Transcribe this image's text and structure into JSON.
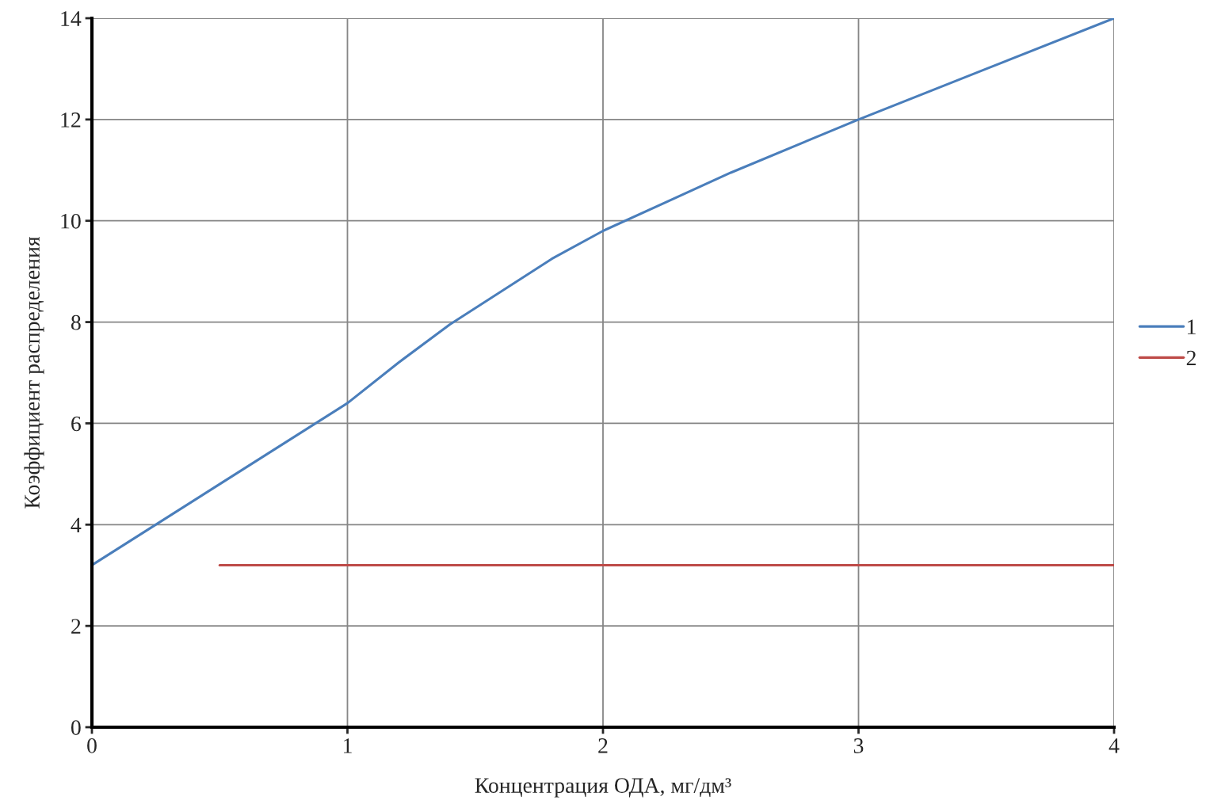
{
  "chart_data": {
    "type": "line",
    "xlabel": "Концентрация ОДА, мг/дм³",
    "ylabel": "Коэффициент распределения",
    "xlim": [
      0,
      4
    ],
    "xticks": [
      0,
      1,
      2,
      3,
      4
    ],
    "ylim": [
      0,
      14
    ],
    "yticks": [
      0,
      2,
      4,
      6,
      8,
      10,
      12,
      14
    ],
    "grid": true,
    "legend": "right",
    "marker": "none",
    "line_style": "solid",
    "series": [
      {
        "name": "1",
        "color": "#4a7ebb",
        "x": [
          0,
          0.5,
          1,
          1.2,
          1.4,
          1.6,
          1.8,
          2,
          2.5,
          3,
          3.5,
          4
        ],
        "values": [
          3.2,
          4.8,
          6.4,
          7.2,
          7.95,
          8.6,
          9.25,
          9.8,
          10.95,
          12,
          13.0,
          14
        ]
      },
      {
        "name": "2",
        "color": "#be4b48",
        "x": [
          0.5,
          4
        ],
        "values": [
          3.2,
          3.2
        ]
      }
    ]
  }
}
